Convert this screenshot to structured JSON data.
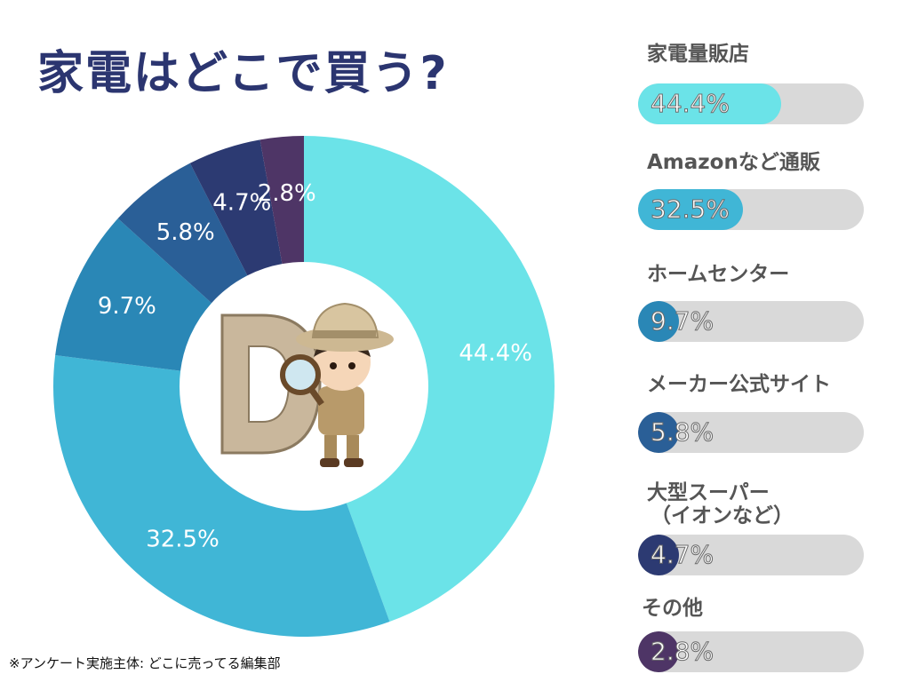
{
  "title": "家電はどこで買う?",
  "footnote": "※アンケート実施主体: どこに売ってる編集部",
  "chart_data": {
    "type": "pie",
    "donut": true,
    "legend": "right",
    "categories": [
      "家電量販店",
      "Amazonなど通販",
      "ホームセンター",
      "メーカー公式サイト",
      "大型スーパー\n（イオンなど）",
      "その他"
    ],
    "values": [
      44.4,
      32.5,
      9.7,
      5.8,
      4.7,
      2.8
    ],
    "labels": [
      "44.4%",
      "32.5%",
      "9.7%",
      "5.8%",
      "4.7%",
      "2.8%"
    ],
    "colors": [
      "#6be3e8",
      "#40b6d6",
      "#2a87b6",
      "#2a5f97",
      "#2c3a72",
      "#4e3566"
    ]
  }
}
